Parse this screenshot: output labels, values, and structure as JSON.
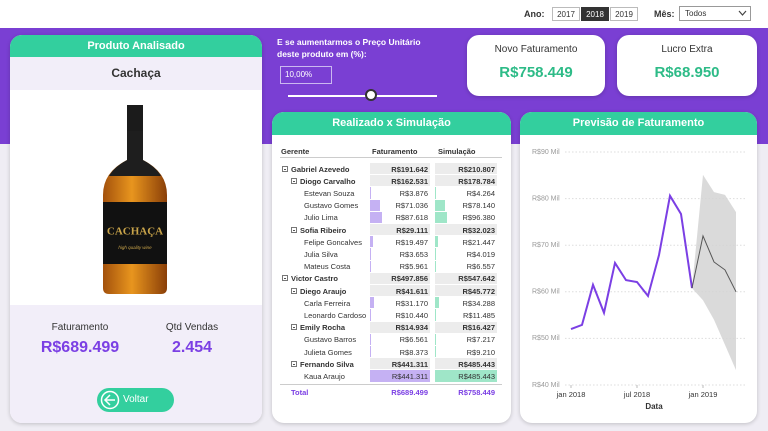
{
  "filters": {
    "year_label": "Ano:",
    "years": [
      {
        "label": "2017",
        "selected": false
      },
      {
        "label": "2018",
        "selected": true
      },
      {
        "label": "2019",
        "selected": false
      }
    ],
    "month_label": "Mês:",
    "month": "Todos"
  },
  "product_card": {
    "title": "Produto Analisado",
    "product": "Cachaça",
    "bottle_label": "CACHAÇA",
    "bottle_sublabel": "high quality wine",
    "kpis": [
      {
        "label": "Faturamento",
        "value": "R$689.499"
      },
      {
        "label": "Qtd Vendas",
        "value": "2.454"
      }
    ],
    "button": "Voltar"
  },
  "simulation": {
    "prompt": "E se aumentarmos o Preço Unitário deste produto em (%):",
    "input": "10,00%"
  },
  "kpi_cards": [
    {
      "label": "Novo Faturamento",
      "value": "R$758.449"
    },
    {
      "label": "Lucro Extra",
      "value": "R$68.950"
    }
  ],
  "table": {
    "title": "Realizado x Simulação",
    "columns": [
      "Gerente",
      "Faturamento",
      "Simulação"
    ],
    "rows": [
      {
        "name": "Gabriel Azevedo",
        "faturamento": "R$191.642",
        "simulacao": "R$210.807",
        "children": [
          {
            "name": "Diogo Carvalho",
            "faturamento": "R$162.531",
            "simulacao": "R$178.784",
            "children": [
              {
                "name": "Estevan Souza",
                "faturamento": "R$3.876",
                "simulacao": "R$4.264"
              },
              {
                "name": "Gustavo Gomes",
                "faturamento": "R$71.036",
                "simulacao": "R$78.140"
              },
              {
                "name": "Julio Lima",
                "faturamento": "R$87.618",
                "simulacao": "R$96.380"
              }
            ]
          },
          {
            "name": "Sofia Ribeiro",
            "faturamento": "R$29.111",
            "simulacao": "R$32.023",
            "children": [
              {
                "name": "Felipe Goncalves",
                "faturamento": "R$19.497",
                "simulacao": "R$21.447"
              },
              {
                "name": "Julia Silva",
                "faturamento": "R$3.653",
                "simulacao": "R$4.019"
              },
              {
                "name": "Mateus Costa",
                "faturamento": "R$5.961",
                "simulacao": "R$6.557"
              }
            ]
          }
        ]
      },
      {
        "name": "Victor Castro",
        "faturamento": "R$497.856",
        "simulacao": "R$547.642",
        "children": [
          {
            "name": "Diego Araujo",
            "faturamento": "R$41.611",
            "simulacao": "R$45.772",
            "children": [
              {
                "name": "Carla Ferreira",
                "faturamento": "R$31.170",
                "simulacao": "R$34.288"
              },
              {
                "name": "Leonardo Cardoso",
                "faturamento": "R$10.440",
                "simulacao": "R$11.485"
              }
            ]
          },
          {
            "name": "Emily Rocha",
            "faturamento": "R$14.934",
            "simulacao": "R$16.427",
            "children": [
              {
                "name": "Gustavo Barros",
                "faturamento": "R$6.561",
                "simulacao": "R$7.217"
              },
              {
                "name": "Julieta Gomes",
                "faturamento": "R$8.373",
                "simulacao": "R$9.210"
              }
            ]
          },
          {
            "name": "Fernando Silva",
            "faturamento": "R$441.311",
            "simulacao": "R$485.443",
            "children": [
              {
                "name": "Kaua Araujo",
                "faturamento": "R$441.311",
                "simulacao": "R$485.443"
              }
            ]
          }
        ]
      }
    ],
    "total": {
      "label": "Total",
      "faturamento": "R$689.499",
      "simulacao": "R$758.449"
    }
  },
  "chart_data": {
    "type": "line",
    "title": "Previsão de Faturamento",
    "x_label": "Data",
    "x": [
      "2018-01",
      "2018-02",
      "2018-03",
      "2018-04",
      "2018-05",
      "2018-06",
      "2018-07",
      "2018-08",
      "2018-09",
      "2018-10",
      "2018-11",
      "2018-12",
      "2019-01",
      "2019-02",
      "2019-03",
      "2019-04"
    ],
    "xticks": [
      {
        "value": "2018-01",
        "label": "jan 2018"
      },
      {
        "value": "2018-07",
        "label": "jul 2018"
      },
      {
        "value": "2019-01",
        "label": "jan 2019"
      }
    ],
    "ylim": [
      40,
      90
    ],
    "yticks": [
      {
        "value": 40,
        "label": "R$40 Mil"
      },
      {
        "value": 50,
        "label": "R$50 Mil"
      },
      {
        "value": 60,
        "label": "R$60 Mil"
      },
      {
        "value": 70,
        "label": "R$70 Mil"
      },
      {
        "value": 80,
        "label": "R$80 Mil"
      },
      {
        "value": 90,
        "label": "R$90 Mil"
      }
    ],
    "grid": true,
    "series": [
      {
        "color": "#7b3fe4",
        "values": [
          52.0,
          52.9,
          61.5,
          55.5,
          66.2,
          62.5,
          62.1,
          59.1,
          67.9,
          80.6,
          76.7,
          60.8,
          null,
          null,
          null,
          null
        ]
      },
      {
        "color": "#555555",
        "values": [
          null,
          null,
          null,
          null,
          null,
          null,
          null,
          null,
          null,
          null,
          null,
          60.8,
          72.0,
          66.4,
          64.7,
          60.0
        ]
      }
    ],
    "band": {
      "color": "#d4d4d4",
      "lower": [
        null,
        null,
        null,
        null,
        null,
        null,
        null,
        null,
        null,
        null,
        null,
        60.8,
        58.2,
        54.0,
        48.6,
        43.2
      ],
      "upper": [
        null,
        null,
        null,
        null,
        null,
        null,
        null,
        null,
        null,
        null,
        null,
        60.8,
        85.1,
        81.4,
        80.8,
        77.1
      ]
    }
  }
}
